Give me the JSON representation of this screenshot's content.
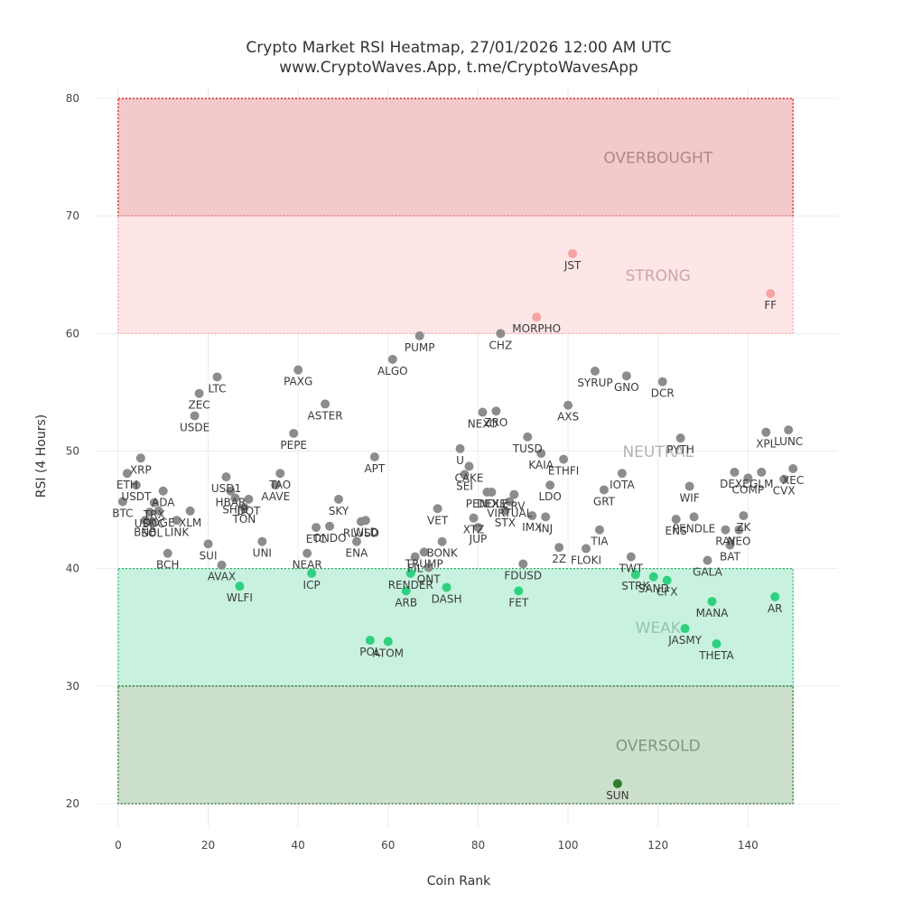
{
  "chart_data": {
    "type": "scatter",
    "title": "Crypto Market RSI Heatmap, 27/01/2026 12:00 AM UTC",
    "subtitle": "www.CryptoWaves.App, t.me/CryptoWavesApp",
    "xlabel": "Coin Rank",
    "ylabel": "RSI (4 Hours)",
    "xlim": [
      -5,
      160
    ],
    "ylim": [
      18,
      81
    ],
    "xticks": [
      0,
      20,
      40,
      60,
      80,
      100,
      120,
      140
    ],
    "yticks": [
      20,
      30,
      40,
      50,
      60,
      70,
      80
    ],
    "zone_x_range": [
      0,
      150
    ],
    "zones": [
      {
        "name": "OVERBOUGHT",
        "from": 70,
        "to": 80,
        "fill": "#f3c9c9",
        "line": "#cc0000",
        "text": "#b08888",
        "label_y": 74.5
      },
      {
        "name": "STRONG",
        "from": 60,
        "to": 70,
        "fill": "#ffe6e6",
        "line": "#f2a0a0",
        "text": "#c7a7a7",
        "label_y": 64.5
      },
      {
        "name": "NEUTRAL",
        "from": 40,
        "to": 60,
        "fill": "none",
        "line": "none",
        "text": "#b3b3b3",
        "label_y": 49.5
      },
      {
        "name": "WEAK",
        "from": 30,
        "to": 40,
        "fill": "#c8f2df",
        "line": "#20b060",
        "text": "#97c4ab",
        "label_y": 34.5
      },
      {
        "name": "OVERSOLD",
        "from": 20,
        "to": 30,
        "fill": "#cce0cc",
        "line": "#1a5c1a",
        "text": "#7d997d",
        "label_y": 24.5
      }
    ],
    "zone_label_x": 120,
    "colors": {
      "neutral": "#8c8c8c",
      "strong": "#f5a3a3",
      "weak": "#2fd07f",
      "oversold": "#2e7d2e",
      "grid": "#ececec"
    },
    "points": [
      {
        "name": "BTC",
        "x": 1,
        "y": 45.7,
        "zone": "neutral"
      },
      {
        "name": "ETH",
        "x": 2,
        "y": 48.1,
        "zone": "neutral"
      },
      {
        "name": "USDT",
        "x": 4,
        "y": 47.1,
        "zone": "neutral"
      },
      {
        "name": "XRP",
        "x": 5,
        "y": 49.4,
        "zone": "neutral"
      },
      {
        "name": "BNB",
        "x": 6,
        "y": 44.1,
        "zone": "neutral"
      },
      {
        "name": "USDC",
        "x": 7,
        "y": 44.8,
        "zone": "neutral"
      },
      {
        "name": "SOL",
        "x": 7.5,
        "y": 44.0,
        "zone": "neutral"
      },
      {
        "name": "TRX",
        "x": 8,
        "y": 45.6,
        "zone": "neutral"
      },
      {
        "name": "DOGE",
        "x": 9,
        "y": 44.9,
        "zone": "neutral"
      },
      {
        "name": "ADA",
        "x": 10,
        "y": 46.6,
        "zone": "neutral"
      },
      {
        "name": "BCH",
        "x": 11,
        "y": 41.3,
        "zone": "neutral"
      },
      {
        "name": "LINK",
        "x": 13,
        "y": 44.1,
        "zone": "neutral"
      },
      {
        "name": "XLM",
        "x": 16,
        "y": 44.9,
        "zone": "neutral"
      },
      {
        "name": "USDE",
        "x": 17,
        "y": 53.0,
        "zone": "neutral"
      },
      {
        "name": "ZEC",
        "x": 18,
        "y": 54.9,
        "zone": "neutral"
      },
      {
        "name": "SUI",
        "x": 20,
        "y": 42.1,
        "zone": "neutral"
      },
      {
        "name": "LTC",
        "x": 22,
        "y": 56.3,
        "zone": "neutral"
      },
      {
        "name": "AVAX",
        "x": 23,
        "y": 40.3,
        "zone": "neutral"
      },
      {
        "name": "USD1",
        "x": 24,
        "y": 47.8,
        "zone": "neutral"
      },
      {
        "name": "HBAR",
        "x": 25,
        "y": 46.6,
        "zone": "neutral"
      },
      {
        "name": "SHIB",
        "x": 26,
        "y": 46.0,
        "zone": "neutral"
      },
      {
        "name": "WLFI",
        "x": 27,
        "y": 38.5,
        "zone": "weak"
      },
      {
        "name": "TON",
        "x": 28,
        "y": 45.2,
        "zone": "neutral"
      },
      {
        "name": "DOT",
        "x": 29,
        "y": 45.9,
        "zone": "neutral"
      },
      {
        "name": "UNI",
        "x": 32,
        "y": 42.3,
        "zone": "neutral"
      },
      {
        "name": "AAVE",
        "x": 35,
        "y": 47.1,
        "zone": "neutral"
      },
      {
        "name": "TAO",
        "x": 36,
        "y": 48.1,
        "zone": "neutral"
      },
      {
        "name": "PEPE",
        "x": 39,
        "y": 51.5,
        "zone": "neutral"
      },
      {
        "name": "PAXG",
        "x": 40,
        "y": 56.9,
        "zone": "neutral"
      },
      {
        "name": "NEAR",
        "x": 42,
        "y": 41.3,
        "zone": "neutral"
      },
      {
        "name": "ICP",
        "x": 43,
        "y": 39.6,
        "zone": "weak"
      },
      {
        "name": "ETC",
        "x": 44,
        "y": 43.5,
        "zone": "neutral"
      },
      {
        "name": "ASTER",
        "x": 46,
        "y": 54.0,
        "zone": "neutral"
      },
      {
        "name": "ONDO",
        "x": 47,
        "y": 43.6,
        "zone": "neutral"
      },
      {
        "name": "SKY",
        "x": 49,
        "y": 45.9,
        "zone": "neutral"
      },
      {
        "name": "ENA",
        "x": 53,
        "y": 42.3,
        "zone": "neutral"
      },
      {
        "name": "RLUSD",
        "x": 54,
        "y": 44.0,
        "zone": "neutral"
      },
      {
        "name": "WLD",
        "x": 55,
        "y": 44.1,
        "zone": "neutral"
      },
      {
        "name": "POL",
        "x": 56,
        "y": 33.9,
        "zone": "weak"
      },
      {
        "name": "APT",
        "x": 57,
        "y": 49.5,
        "zone": "neutral"
      },
      {
        "name": "ATOM",
        "x": 60,
        "y": 33.8,
        "zone": "weak"
      },
      {
        "name": "ALGO",
        "x": 61,
        "y": 57.8,
        "zone": "neutral"
      },
      {
        "name": "ARB",
        "x": 64,
        "y": 38.1,
        "zone": "weak"
      },
      {
        "name": "RENDER",
        "x": 65,
        "y": 39.6,
        "zone": "weak"
      },
      {
        "name": "FIL",
        "x": 66,
        "y": 41.0,
        "zone": "neutral"
      },
      {
        "name": "PUMP",
        "x": 67,
        "y": 59.8,
        "zone": "neutral"
      },
      {
        "name": "TRUMP",
        "x": 68,
        "y": 41.4,
        "zone": "neutral"
      },
      {
        "name": "QNT",
        "x": 69,
        "y": 40.1,
        "zone": "neutral"
      },
      {
        "name": "VET",
        "x": 71,
        "y": 45.1,
        "zone": "neutral"
      },
      {
        "name": "BONK",
        "x": 72,
        "y": 42.3,
        "zone": "neutral"
      },
      {
        "name": "DASH",
        "x": 73,
        "y": 38.4,
        "zone": "weak"
      },
      {
        "name": "U",
        "x": 76,
        "y": 50.2,
        "zone": "neutral"
      },
      {
        "name": "SEI",
        "x": 77,
        "y": 48.0,
        "zone": "neutral"
      },
      {
        "name": "CAKE",
        "x": 78,
        "y": 48.7,
        "zone": "neutral"
      },
      {
        "name": "XTZ",
        "x": 79,
        "y": 44.3,
        "zone": "neutral"
      },
      {
        "name": "JUP",
        "x": 80,
        "y": 43.5,
        "zone": "neutral"
      },
      {
        "name": "NEXO",
        "x": 81,
        "y": 53.3,
        "zone": "neutral"
      },
      {
        "name": "PENDLE",
        "x": 82,
        "y": 46.5,
        "zone": "neutral"
      },
      {
        "name": "DEXE",
        "x": 83,
        "y": 46.5,
        "zone": "neutral"
      },
      {
        "name": "ZRO",
        "x": 84,
        "y": 53.4,
        "zone": "neutral"
      },
      {
        "name": "CHZ",
        "x": 85,
        "y": 60.0,
        "zone": "neutral"
      },
      {
        "name": "STX",
        "x": 86,
        "y": 44.9,
        "zone": "neutral"
      },
      {
        "name": "VIRTUAL",
        "x": 87,
        "y": 45.7,
        "zone": "neutral"
      },
      {
        "name": "CRV",
        "x": 88,
        "y": 46.3,
        "zone": "neutral"
      },
      {
        "name": "FET",
        "x": 89,
        "y": 38.1,
        "zone": "weak"
      },
      {
        "name": "FDUSD",
        "x": 90,
        "y": 40.4,
        "zone": "neutral"
      },
      {
        "name": "TUSD",
        "x": 91,
        "y": 51.2,
        "zone": "neutral"
      },
      {
        "name": "IMX",
        "x": 92,
        "y": 44.5,
        "zone": "neutral"
      },
      {
        "name": "MORPHO",
        "x": 93,
        "y": 61.4,
        "zone": "strong"
      },
      {
        "name": "KAIA",
        "x": 94,
        "y": 49.8,
        "zone": "neutral"
      },
      {
        "name": "INJ",
        "x": 95,
        "y": 44.4,
        "zone": "neutral"
      },
      {
        "name": "LDO",
        "x": 96,
        "y": 47.1,
        "zone": "neutral"
      },
      {
        "name": "2Z",
        "x": 98,
        "y": 41.8,
        "zone": "neutral"
      },
      {
        "name": "ETHFI",
        "x": 99,
        "y": 49.3,
        "zone": "neutral"
      },
      {
        "name": "AXS",
        "x": 100,
        "y": 53.9,
        "zone": "neutral"
      },
      {
        "name": "JST",
        "x": 101,
        "y": 66.8,
        "zone": "strong"
      },
      {
        "name": "FLOKI",
        "x": 104,
        "y": 41.7,
        "zone": "neutral"
      },
      {
        "name": "TIA",
        "x": 107,
        "y": 43.3,
        "zone": "neutral"
      },
      {
        "name": "SYRUP",
        "x": 106,
        "y": 56.8,
        "zone": "neutral"
      },
      {
        "name": "GRT",
        "x": 108,
        "y": 46.7,
        "zone": "neutral"
      },
      {
        "name": "IOTA",
        "x": 112,
        "y": 48.1,
        "zone": "neutral"
      },
      {
        "name": "GNO",
        "x": 113,
        "y": 56.4,
        "zone": "neutral"
      },
      {
        "name": "TWT",
        "x": 114,
        "y": 41.0,
        "zone": "neutral"
      },
      {
        "name": "STRK",
        "x": 115,
        "y": 39.5,
        "zone": "weak"
      },
      {
        "name": "SUN",
        "x": 111,
        "y": 21.7,
        "zone": "oversold"
      },
      {
        "name": "SAND",
        "x": 119,
        "y": 39.3,
        "zone": "weak"
      },
      {
        "name": "DCR",
        "x": 121,
        "y": 55.9,
        "zone": "neutral"
      },
      {
        "name": "CFX",
        "x": 122,
        "y": 39.0,
        "zone": "weak"
      },
      {
        "name": "ENS",
        "x": 124,
        "y": 44.2,
        "zone": "neutral"
      },
      {
        "name": "PYTH",
        "x": 125,
        "y": 51.1,
        "zone": "neutral"
      },
      {
        "name": "JASMY",
        "x": 126,
        "y": 34.9,
        "zone": "weak"
      },
      {
        "name": "WIF",
        "x": 127,
        "y": 47.0,
        "zone": "neutral"
      },
      {
        "name": "PENDLE",
        "x": 128,
        "y": 44.4,
        "zone": "neutral"
      },
      {
        "name": "GALA",
        "x": 131,
        "y": 40.7,
        "zone": "neutral"
      },
      {
        "name": "MANA",
        "x": 132,
        "y": 37.2,
        "zone": "weak"
      },
      {
        "name": "THETA",
        "x": 133,
        "y": 33.6,
        "zone": "weak"
      },
      {
        "name": "RAY",
        "x": 135,
        "y": 43.3,
        "zone": "neutral"
      },
      {
        "name": "BAT",
        "x": 136,
        "y": 42.0,
        "zone": "neutral"
      },
      {
        "name": "DEXE",
        "x": 137,
        "y": 48.2,
        "zone": "neutral"
      },
      {
        "name": "NEO",
        "x": 138,
        "y": 43.3,
        "zone": "neutral"
      },
      {
        "name": "ZK",
        "x": 139,
        "y": 44.5,
        "zone": "neutral"
      },
      {
        "name": "COMP",
        "x": 140,
        "y": 47.7,
        "zone": "neutral"
      },
      {
        "name": "GLM",
        "x": 143,
        "y": 48.2,
        "zone": "neutral"
      },
      {
        "name": "XPL",
        "x": 144,
        "y": 51.6,
        "zone": "neutral"
      },
      {
        "name": "FF",
        "x": 145,
        "y": 63.4,
        "zone": "strong"
      },
      {
        "name": "AR",
        "x": 146,
        "y": 37.6,
        "zone": "weak"
      },
      {
        "name": "CVX",
        "x": 148,
        "y": 47.6,
        "zone": "neutral"
      },
      {
        "name": "LUNC",
        "x": 149,
        "y": 51.8,
        "zone": "neutral"
      },
      {
        "name": "XEC",
        "x": 150,
        "y": 48.5,
        "zone": "neutral"
      }
    ]
  }
}
